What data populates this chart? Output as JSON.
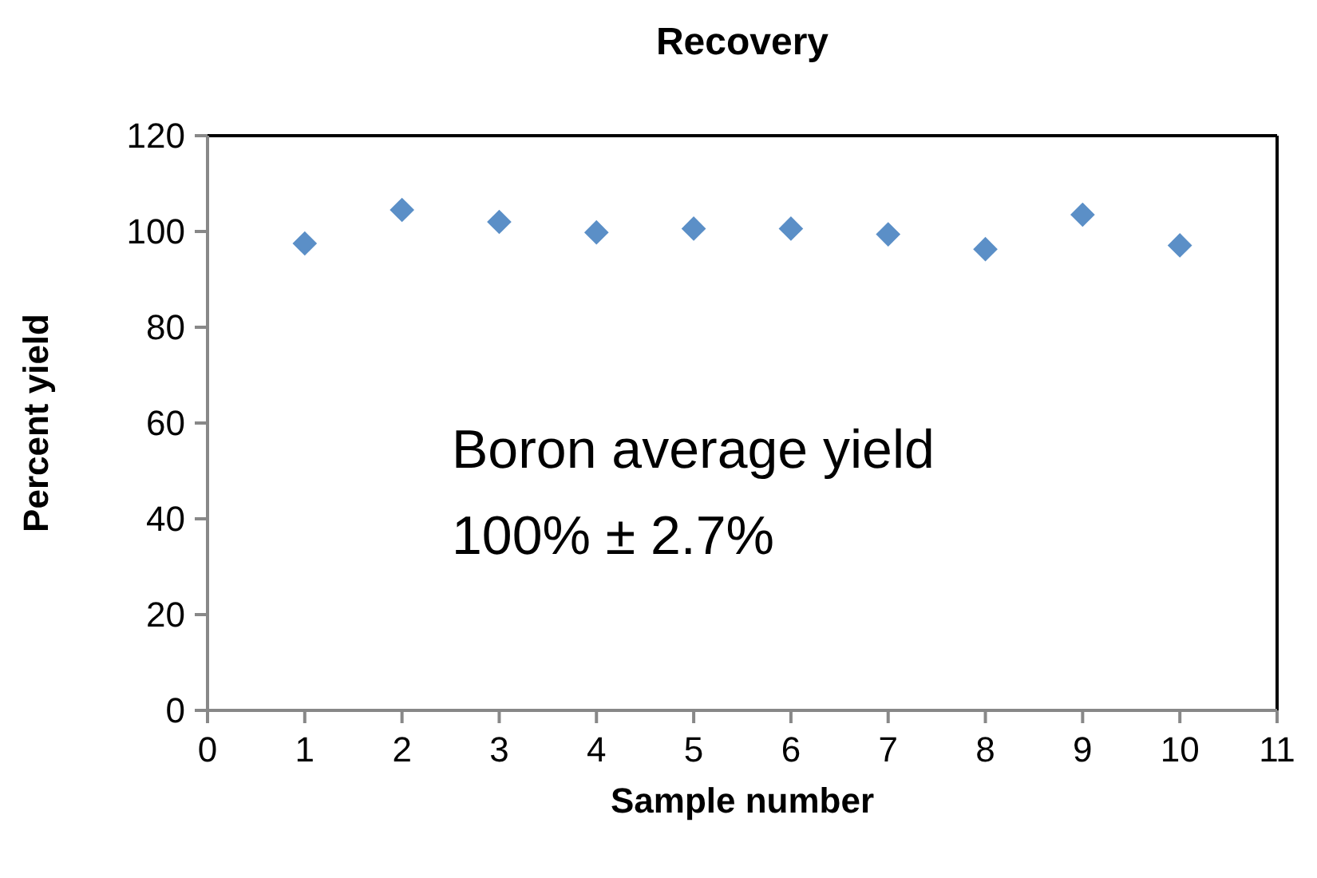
{
  "chart_data": {
    "type": "scatter",
    "title": "Recovery",
    "xlabel": "Sample number",
    "ylabel": "Percent yield",
    "x": [
      1,
      2,
      3,
      4,
      5,
      6,
      7,
      8,
      9,
      10
    ],
    "series": [
      {
        "color": "#5b8fc7",
        "values": [
          97.5,
          104.5,
          102.0,
          99.8,
          100.6,
          100.6,
          99.4,
          96.3,
          103.5,
          97.1
        ]
      }
    ],
    "xlim": [
      0,
      11
    ],
    "xticks": [
      0,
      1,
      2,
      3,
      4,
      5,
      6,
      7,
      8,
      9,
      10,
      11
    ],
    "ylim": [
      0,
      120
    ],
    "yticks": [
      0,
      20,
      40,
      60,
      80,
      100,
      120
    ],
    "marker": "diamond",
    "grid": false,
    "annotations": [
      "Boron average yield",
      "100% ± 2.7%"
    ]
  }
}
